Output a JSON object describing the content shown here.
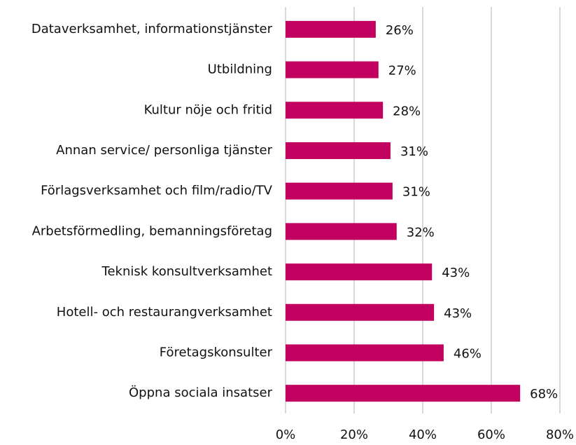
{
  "chart_data": {
    "type": "barh",
    "categories": [
      "Dataverksamhet, informationstjänster",
      "Utbildning",
      "Kultur nöje och fritid",
      "Annan service/ personliga tjänster",
      "Förlagsverksamhet och film/radio/TV",
      "Arbetsförmedling, bemanningsföretag",
      "Teknisk konsultverksamhet",
      "Hotell- och restaurangverksamhet",
      "Företagskonsulter",
      "Öppna sociala insatser"
    ],
    "values": [
      26.3,
      27.1,
      28.4,
      30.6,
      31.2,
      32.4,
      42.7,
      43.3,
      46.1,
      68.4
    ],
    "value_labels": [
      "26%",
      "27%",
      "28%",
      "31%",
      "31%",
      "32%",
      "43%",
      "43%",
      "46%",
      "68%"
    ],
    "color": "#c2005f",
    "xlim": [
      0,
      80
    ],
    "xticks": [
      {
        "value": 0,
        "label": "0%"
      },
      {
        "value": 20,
        "label": "20%"
      },
      {
        "value": 40,
        "label": "40%"
      },
      {
        "value": 60,
        "label": "60%"
      },
      {
        "value": 80,
        "label": "80%"
      }
    ],
    "grid": true
  }
}
